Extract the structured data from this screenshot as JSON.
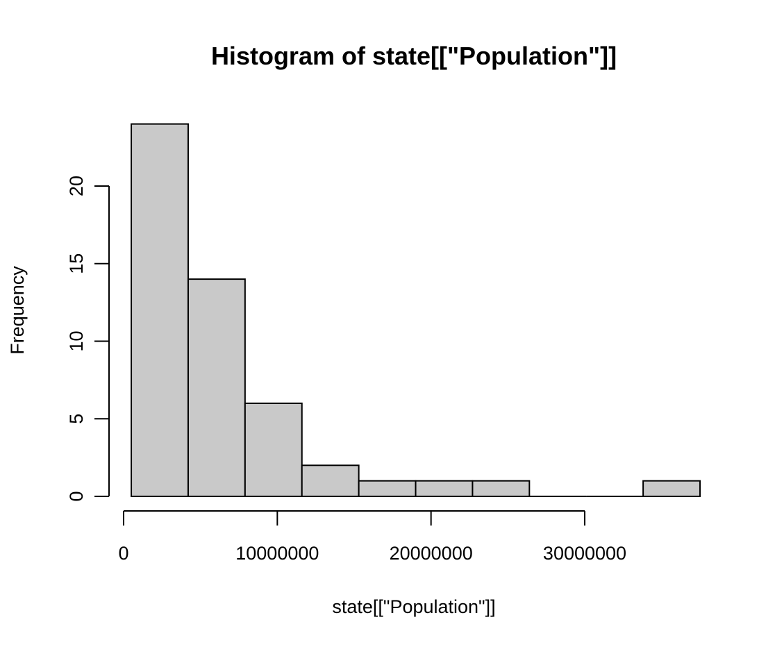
{
  "chart_data": {
    "type": "bar",
    "title": "Histogram of state[[\"Population\"]]",
    "xlabel": "state[[\"Population\"]]",
    "ylabel": "Frequency",
    "bins": [
      {
        "start": 500000,
        "end": 4200000,
        "count": 24
      },
      {
        "start": 4200000,
        "end": 7900000,
        "count": 14
      },
      {
        "start": 7900000,
        "end": 11600000,
        "count": 6
      },
      {
        "start": 11600000,
        "end": 15300000,
        "count": 2
      },
      {
        "start": 15300000,
        "end": 19000000,
        "count": 1
      },
      {
        "start": 19000000,
        "end": 22700000,
        "count": 1
      },
      {
        "start": 22700000,
        "end": 26400000,
        "count": 1
      },
      {
        "start": 26400000,
        "end": 30100000,
        "count": 0
      },
      {
        "start": 30100000,
        "end": 33800000,
        "count": 0
      },
      {
        "start": 33800000,
        "end": 37500000,
        "count": 1
      }
    ],
    "xticks": [
      0,
      10000000,
      20000000,
      30000000
    ],
    "xtick_labels": [
      "0",
      "10000000",
      "20000000",
      "30000000"
    ],
    "yticks": [
      0,
      5,
      10,
      15,
      20
    ],
    "ytick_labels": [
      "0",
      "5",
      "10",
      "15",
      "20"
    ],
    "xlim": [
      0,
      37500000
    ],
    "ylim": [
      0,
      24
    ],
    "grid": false,
    "bar_fill": "#c9c9c9",
    "bar_stroke": "#000000"
  }
}
